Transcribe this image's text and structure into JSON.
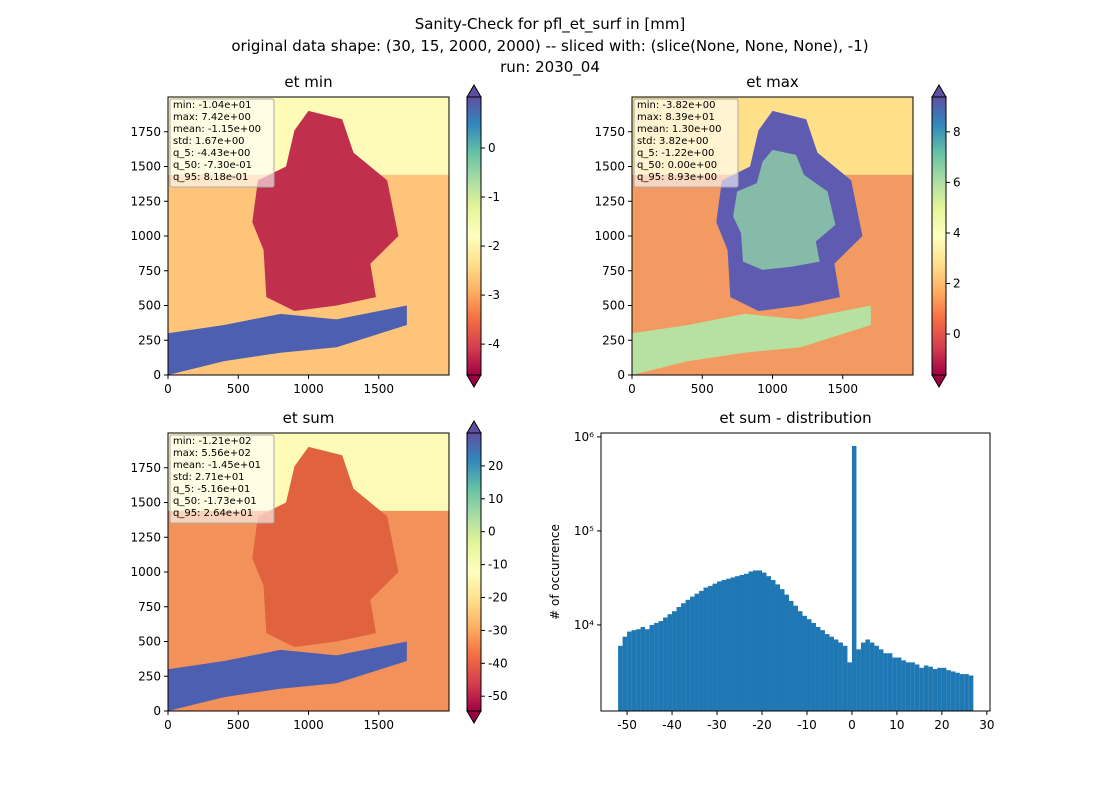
{
  "figure_title": [
    "Sanity-Check for pfl_et_surf in [mm]",
    "original data shape: (30, 15, 2000, 2000) -- sliced with: (slice(None, None, None), -1)",
    "run: 2030_04"
  ],
  "chart_data": [
    {
      "type": "heatmap",
      "title": "et min",
      "xlim": [
        0,
        2000
      ],
      "ylim": [
        0,
        2000
      ],
      "xticks": [
        0,
        500,
        1000,
        1500
      ],
      "yticks": [
        0,
        250,
        500,
        750,
        1000,
        1250,
        1500,
        1750
      ],
      "stats": [
        "min: -1.04e+01",
        "max: 7.42e+00",
        "mean: -1.15e+00",
        "std: 1.67e+00",
        "q_5: -4.43e+00",
        "q_50: -7.30e-01",
        "q_95: 8.18e-01"
      ],
      "colorbar": {
        "lim": [
          -4.63,
          1.04
        ],
        "ticks": [
          -4,
          -3,
          -2,
          -1,
          0
        ]
      }
    },
    {
      "type": "heatmap",
      "title": "et max",
      "xlim": [
        0,
        2000
      ],
      "ylim": [
        0,
        2000
      ],
      "xticks": [
        0,
        500,
        1000,
        1500
      ],
      "yticks": [
        0,
        250,
        500,
        750,
        1000,
        1250,
        1500,
        1750
      ],
      "stats": [
        "min: -3.82e+00",
        "max: 8.39e+01",
        "mean: 1.30e+00",
        "std: 3.82e+00",
        "q_5: -1.22e+00",
        "q_50: 0.00e+00",
        "q_95: 8.93e+00"
      ],
      "colorbar": {
        "lim": [
          -1.62,
          9.38
        ],
        "ticks": [
          0,
          2,
          4,
          6,
          8
        ]
      }
    },
    {
      "type": "heatmap",
      "title": "et sum",
      "xlim": [
        0,
        2000
      ],
      "ylim": [
        0,
        2000
      ],
      "xticks": [
        0,
        500,
        1000,
        1500
      ],
      "yticks": [
        0,
        250,
        500,
        750,
        1000,
        1250,
        1500,
        1750
      ],
      "stats": [
        "min: -1.21e+02",
        "max: 5.56e+02",
        "mean: -1.45e+01",
        "std: 2.71e+01",
        "q_5: -5.16e+01",
        "q_50: -1.73e+01",
        "q_95: 2.64e+01"
      ],
      "colorbar": {
        "lim": [
          -54.5,
          30
        ],
        "ticks": [
          -50,
          -40,
          -30,
          -20,
          -10,
          0,
          10,
          20
        ]
      }
    },
    {
      "type": "histogram",
      "title": "et sum - distribution",
      "ylabel": "# of occurrence",
      "log_y": true,
      "color": "#1f77b4",
      "xlim": [
        -55.8,
        30.7
      ],
      "xticks": [
        -50,
        -40,
        -30,
        -20,
        -10,
        0,
        10,
        20,
        30
      ],
      "ylim": [
        1215,
        1100000
      ],
      "yticks": [
        {
          "value": 10000,
          "label": "10⁴"
        },
        {
          "value": 100000,
          "label": "10⁵"
        },
        {
          "value": 1000000,
          "label": "10⁶"
        }
      ],
      "bins": [
        -52,
        -51,
        -50,
        -49,
        -48,
        -47,
        -46,
        -45,
        -44,
        -43,
        -42,
        -41,
        -40,
        -39,
        -38,
        -37,
        -36,
        -35,
        -34,
        -33,
        -32,
        -31,
        -30,
        -29,
        -28,
        -27,
        -26,
        -25,
        -24,
        -23,
        -22,
        -21,
        -20,
        -19,
        -18,
        -17,
        -16,
        -15,
        -14,
        -13,
        -12,
        -11,
        -10,
        -9,
        -8,
        -7,
        -6,
        -5,
        -4,
        -3,
        -2,
        -1,
        0,
        1,
        2,
        3,
        4,
        5,
        6,
        7,
        8,
        9,
        10,
        11,
        12,
        13,
        14,
        15,
        16,
        17,
        18,
        19,
        20,
        21,
        22,
        23,
        24,
        25,
        26,
        27
      ],
      "values": [
        6000,
        7500,
        8500,
        8800,
        9000,
        9500,
        9000,
        10000,
        10500,
        11000,
        12000,
        13000,
        14000,
        15500,
        17000,
        18500,
        20000,
        21500,
        23000,
        25000,
        26000,
        27500,
        29000,
        30000,
        31000,
        32000,
        33000,
        34000,
        35000,
        37000,
        38000,
        38000,
        36000,
        33000,
        30000,
        27000,
        24000,
        21000,
        18000,
        16000,
        14000,
        12500,
        11500,
        10500,
        9500,
        8800,
        8000,
        7500,
        7000,
        6500,
        6000,
        4000,
        800000,
        5500,
        6500,
        7000,
        6500,
        6000,
        5500,
        5000,
        5000,
        4500,
        4500,
        4200,
        4000,
        4000,
        3800,
        3500,
        3700,
        3600,
        3400,
        3500,
        3500,
        3300,
        3200,
        3100,
        3000,
        3000,
        2900
      ]
    }
  ]
}
